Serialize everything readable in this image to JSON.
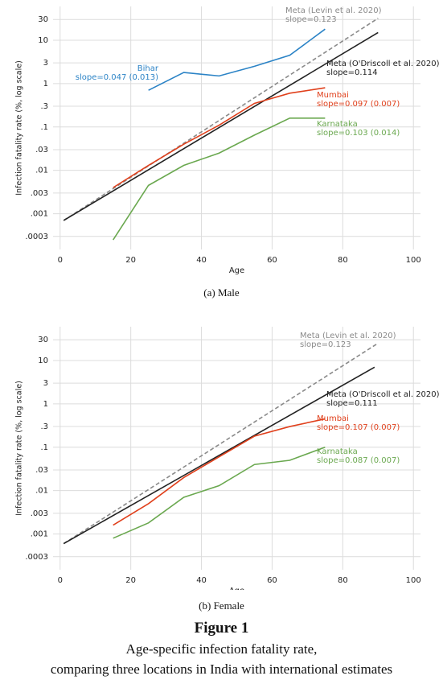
{
  "chart_data": [
    {
      "type": "line",
      "caption": "(a) Male",
      "xlabel": "Age",
      "ylabel": "Infection fatality rate (%, log scale)",
      "xlim": [
        -2,
        102
      ],
      "xticks": [
        0,
        20,
        40,
        60,
        80,
        100
      ],
      "ylim": [
        0.00015,
        60
      ],
      "log_y": true,
      "grid": true,
      "yticks": [
        30,
        10,
        3,
        1,
        {
          "value": 0.3,
          "label": ".3"
        },
        {
          "value": 0.1,
          "label": ".1"
        },
        {
          "value": 0.03,
          "label": ".03"
        },
        {
          "value": 0.01,
          "label": ".01"
        },
        {
          "value": 0.003,
          "label": ".003"
        },
        {
          "value": 0.001,
          "label": ".001"
        },
        {
          "value": 0.0003,
          "label": ".0003"
        }
      ],
      "series": [
        {
          "name": "Meta (Levin et al. 2020)",
          "slope_label": "slope=0.123",
          "color": "#8a8a8a",
          "dashed": true,
          "x": [
            1,
            90
          ],
          "values": [
            0.0007,
            32
          ]
        },
        {
          "name": "Meta (O'Driscoll et al. 2020)",
          "slope_label": "slope=0.114",
          "color": "#222222",
          "x": [
            1,
            90
          ],
          "values": [
            0.0007,
            15
          ]
        },
        {
          "name": "Bihar",
          "slope_label": "slope=0.047 (0.013)",
          "color": "#2b83c6",
          "x": [
            25,
            35,
            45,
            55,
            65,
            75
          ],
          "values": [
            0.7,
            1.8,
            1.5,
            2.5,
            4.5,
            18
          ]
        },
        {
          "name": "Mumbai",
          "slope_label": "slope=0.097 (0.007)",
          "color": "#e0401c",
          "x": [
            15,
            25,
            35,
            45,
            55,
            65,
            75
          ],
          "values": [
            0.004,
            0.013,
            0.04,
            0.11,
            0.35,
            0.6,
            0.8
          ]
        },
        {
          "name": "Karnataka",
          "slope_label": "slope=0.103 (0.014)",
          "color": "#6aa84f",
          "x": [
            15,
            25,
            35,
            45,
            55,
            65,
            75
          ],
          "values": [
            0.00025,
            0.0045,
            0.013,
            0.025,
            0.065,
            0.16,
            0.16
          ]
        }
      ]
    },
    {
      "type": "line",
      "caption": "(b) Female",
      "xlabel": "Age",
      "ylabel": "Infection fatality rate (%, log scale)",
      "xlim": [
        -2,
        102
      ],
      "xticks": [
        0,
        20,
        40,
        60,
        80,
        100
      ],
      "ylim": [
        0.00015,
        60
      ],
      "log_y": true,
      "grid": true,
      "yticks": [
        30,
        10,
        3,
        1,
        {
          "value": 0.3,
          "label": ".3"
        },
        {
          "value": 0.1,
          "label": ".1"
        },
        {
          "value": 0.03,
          "label": ".03"
        },
        {
          "value": 0.01,
          "label": ".01"
        },
        {
          "value": 0.003,
          "label": ".003"
        },
        {
          "value": 0.001,
          "label": ".001"
        },
        {
          "value": 0.0003,
          "label": ".0003"
        }
      ],
      "series": [
        {
          "name": "Meta (Levin et al. 2020)",
          "slope_label": "slope=0.123",
          "color": "#8a8a8a",
          "dashed": true,
          "x": [
            1,
            90
          ],
          "values": [
            0.0006,
            25
          ]
        },
        {
          "name": "Meta (O'Driscoll et al. 2020)",
          "slope_label": "slope=0.111",
          "color": "#222222",
          "x": [
            1,
            89
          ],
          "values": [
            0.0006,
            7
          ]
        },
        {
          "name": "Mumbai",
          "slope_label": "slope=0.107 (0.007)",
          "color": "#e0401c",
          "x": [
            15,
            25,
            35,
            45,
            55,
            65,
            75
          ],
          "values": [
            0.0016,
            0.005,
            0.02,
            0.06,
            0.18,
            0.3,
            0.45
          ]
        },
        {
          "name": "Karnataka",
          "slope_label": "slope=0.087 (0.007)",
          "color": "#6aa84f",
          "x": [
            15,
            25,
            35,
            45,
            55,
            65,
            75
          ],
          "values": [
            0.0008,
            0.0018,
            0.007,
            0.013,
            0.04,
            0.05,
            0.1
          ]
        }
      ]
    }
  ],
  "figure": {
    "label": "Figure 1",
    "caption_lines": [
      "Age-specific infection fatality rate,",
      "comparing three locations in India with international estimates"
    ]
  }
}
